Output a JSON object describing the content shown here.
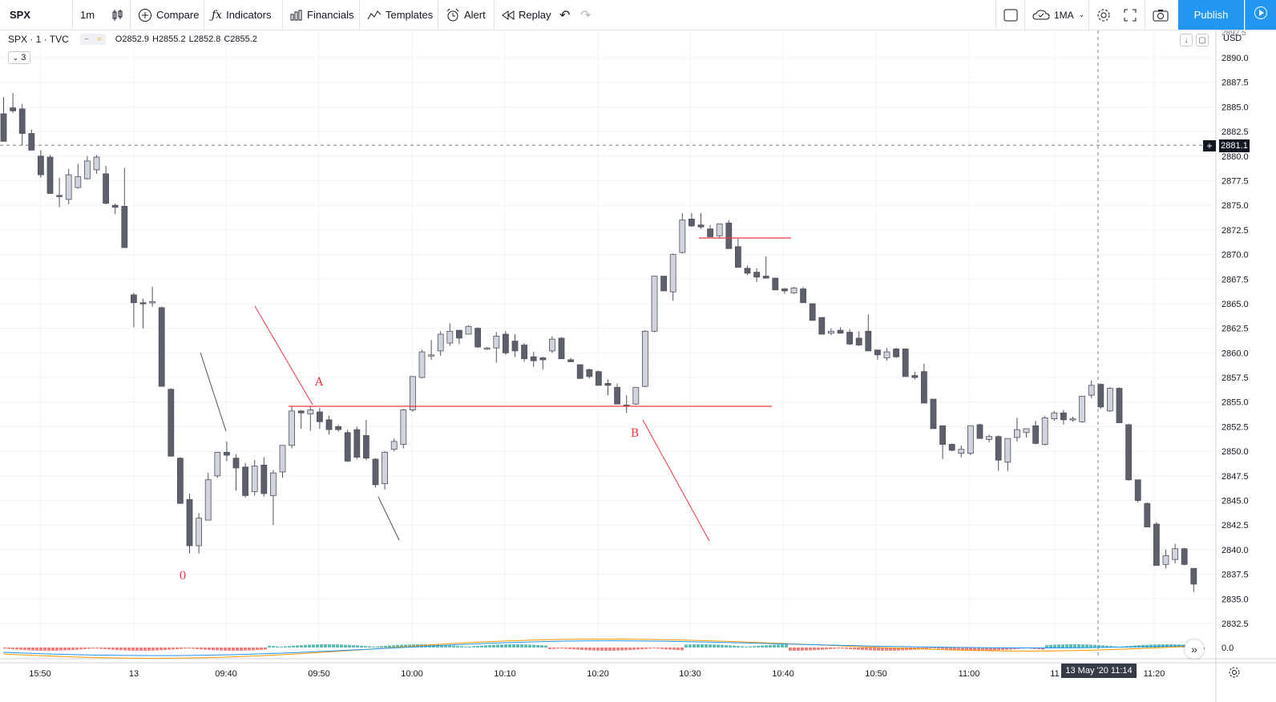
{
  "toolbar": {
    "symbol": "SPX",
    "interval": "1m",
    "compare": "Compare",
    "indicators": "Indicators",
    "financials": "Financials",
    "templates": "Templates",
    "alert": "Alert",
    "replay": "Replay",
    "ma_button": "1MA",
    "publish": "Publish"
  },
  "legend": {
    "symbol": "SPX · 1 · TVC",
    "open": "O2852.9",
    "high": "H2855.2",
    "low": "L2852.8",
    "close": "C2855.2",
    "collapse_count": "3"
  },
  "price_axis": {
    "currency": "USD",
    "crosshair_price": "2881.1"
  },
  "time_axis": {
    "crosshair_time": "13 May '20   11:14"
  },
  "annotations": {
    "label_a": "A",
    "label_b": "B",
    "label_0": "0"
  },
  "colors": {
    "up_candle": "#d1d4dc",
    "down_candle": "#5d606b",
    "drawing": "#f23645",
    "accent": "#2196f3"
  },
  "chart_data": {
    "type": "candlestick",
    "title": "SPX · 1 · TVC",
    "ylim": [
      2830.6,
      2893.4
    ],
    "y_ticks": [
      2890.0,
      2887.5,
      2885.0,
      2882.5,
      2880.0,
      2877.5,
      2875.0,
      2872.5,
      2870.0,
      2867.5,
      2865.0,
      2862.5,
      2860.0,
      2857.5,
      2855.0,
      2852.5,
      2850.0,
      2847.5,
      2845.0,
      2842.5,
      2840.0,
      2837.5,
      2835.0,
      2832.5
    ],
    "x_ticks": [
      "15:50",
      "13",
      "09:40",
      "09:50",
      "10:00",
      "10:10",
      "10:20",
      "10:30",
      "10:40",
      "10:50",
      "11:00",
      "11",
      "11:20"
    ],
    "indicator_label": "0.0",
    "candles": [
      {
        "o": 2884.3,
        "h": 2886.0,
        "l": 2881.5,
        "c": 2881.5
      },
      {
        "o": 2884.9,
        "h": 2886.4,
        "l": 2884.4,
        "c": 2884.6
      },
      {
        "o": 2884.8,
        "h": 2885.3,
        "l": 2881.1,
        "c": 2882.3
      },
      {
        "o": 2882.3,
        "h": 2882.7,
        "l": 2880.6,
        "c": 2880.6
      },
      {
        "o": 2880.0,
        "h": 2880.6,
        "l": 2877.8,
        "c": 2878.1
      },
      {
        "o": 2879.9,
        "h": 2880.1,
        "l": 2876.2,
        "c": 2876.2
      },
      {
        "o": 2876.0,
        "h": 2877.8,
        "l": 2874.8,
        "c": 2875.9
      },
      {
        "o": 2875.6,
        "h": 2878.7,
        "l": 2875.1,
        "c": 2878.1
      },
      {
        "o": 2876.8,
        "h": 2879.2,
        "l": 2876.7,
        "c": 2877.9
      },
      {
        "o": 2877.7,
        "h": 2880.0,
        "l": 2877.6,
        "c": 2879.5
      },
      {
        "o": 2878.6,
        "h": 2880.1,
        "l": 2878.2,
        "c": 2879.9
      },
      {
        "o": 2878.2,
        "h": 2879.0,
        "l": 2875.1,
        "c": 2875.2
      },
      {
        "o": 2875.0,
        "h": 2875.2,
        "l": 2874.1,
        "c": 2874.8
      },
      {
        "o": 2874.9,
        "h": 2878.8,
        "l": 2870.7,
        "c": 2870.7
      },
      {
        "o": 2865.9,
        "h": 2866.1,
        "l": 2862.6,
        "c": 2865.1
      },
      {
        "o": 2865.1,
        "h": 2865.5,
        "l": 2862.5,
        "c": 2865.0
      },
      {
        "o": 2865.1,
        "h": 2866.7,
        "l": 2864.7,
        "c": 2865.2
      },
      {
        "o": 2864.6,
        "h": 2864.7,
        "l": 2856.6,
        "c": 2856.6
      },
      {
        "o": 2856.3,
        "h": 2856.4,
        "l": 2849.5,
        "c": 2849.5
      },
      {
        "o": 2849.3,
        "h": 2849.4,
        "l": 2844.7,
        "c": 2844.7
      },
      {
        "o": 2845.1,
        "h": 2845.7,
        "l": 2839.6,
        "c": 2840.4
      },
      {
        "o": 2840.4,
        "h": 2843.7,
        "l": 2839.6,
        "c": 2843.2
      },
      {
        "o": 2843.0,
        "h": 2847.8,
        "l": 2843.0,
        "c": 2847.1
      },
      {
        "o": 2847.5,
        "h": 2849.9,
        "l": 2847.3,
        "c": 2849.9
      },
      {
        "o": 2849.9,
        "h": 2851.0,
        "l": 2849.0,
        "c": 2849.6
      },
      {
        "o": 2849.3,
        "h": 2849.7,
        "l": 2846.0,
        "c": 2848.3
      },
      {
        "o": 2848.4,
        "h": 2848.8,
        "l": 2845.3,
        "c": 2845.5
      },
      {
        "o": 2845.9,
        "h": 2849.1,
        "l": 2845.5,
        "c": 2848.5
      },
      {
        "o": 2848.6,
        "h": 2849.4,
        "l": 2845.4,
        "c": 2845.7
      },
      {
        "o": 2845.5,
        "h": 2848.1,
        "l": 2842.5,
        "c": 2847.8
      },
      {
        "o": 2847.9,
        "h": 2850.6,
        "l": 2847.3,
        "c": 2850.6
      },
      {
        "o": 2850.6,
        "h": 2854.6,
        "l": 2850.3,
        "c": 2854.1
      },
      {
        "o": 2854.1,
        "h": 2854.2,
        "l": 2852.3,
        "c": 2853.9
      },
      {
        "o": 2853.8,
        "h": 2854.6,
        "l": 2852.1,
        "c": 2854.2
      },
      {
        "o": 2854.0,
        "h": 2854.4,
        "l": 2852.3,
        "c": 2853.0
      },
      {
        "o": 2853.2,
        "h": 2853.6,
        "l": 2851.7,
        "c": 2852.2
      },
      {
        "o": 2852.5,
        "h": 2852.7,
        "l": 2852.0,
        "c": 2852.2
      },
      {
        "o": 2851.9,
        "h": 2852.2,
        "l": 2848.9,
        "c": 2849.0
      },
      {
        "o": 2852.2,
        "h": 2852.5,
        "l": 2849.2,
        "c": 2849.4
      },
      {
        "o": 2851.6,
        "h": 2853.2,
        "l": 2849.1,
        "c": 2849.3
      },
      {
        "o": 2849.2,
        "h": 2849.3,
        "l": 2846.3,
        "c": 2846.6
      },
      {
        "o": 2846.7,
        "h": 2850.0,
        "l": 2846.1,
        "c": 2849.9
      },
      {
        "o": 2850.2,
        "h": 2851.3,
        "l": 2850.0,
        "c": 2851.0
      },
      {
        "o": 2850.7,
        "h": 2854.3,
        "l": 2850.3,
        "c": 2854.2
      },
      {
        "o": 2854.2,
        "h": 2857.6,
        "l": 2854.0,
        "c": 2857.6
      },
      {
        "o": 2857.5,
        "h": 2860.3,
        "l": 2857.4,
        "c": 2860.1
      },
      {
        "o": 2859.7,
        "h": 2861.3,
        "l": 2859.3,
        "c": 2859.8
      },
      {
        "o": 2860.2,
        "h": 2862.2,
        "l": 2859.7,
        "c": 2861.9
      },
      {
        "o": 2861.0,
        "h": 2863.0,
        "l": 2860.7,
        "c": 2862.2
      },
      {
        "o": 2862.3,
        "h": 2862.3,
        "l": 2860.9,
        "c": 2861.5
      },
      {
        "o": 2861.9,
        "h": 2862.8,
        "l": 2862.3,
        "c": 2862.7
      },
      {
        "o": 2862.5,
        "h": 2862.6,
        "l": 2860.5,
        "c": 2860.6
      },
      {
        "o": 2860.4,
        "h": 2860.6,
        "l": 2860.3,
        "c": 2860.5
      },
      {
        "o": 2860.5,
        "h": 2862.1,
        "l": 2859.0,
        "c": 2861.7
      },
      {
        "o": 2861.9,
        "h": 2862.2,
        "l": 2859.8,
        "c": 2860.0
      },
      {
        "o": 2861.2,
        "h": 2861.9,
        "l": 2859.6,
        "c": 2860.2
      },
      {
        "o": 2860.8,
        "h": 2861.0,
        "l": 2859.1,
        "c": 2859.4
      },
      {
        "o": 2859.6,
        "h": 2860.1,
        "l": 2858.6,
        "c": 2859.2
      },
      {
        "o": 2859.5,
        "h": 2859.6,
        "l": 2858.3,
        "c": 2859.3
      },
      {
        "o": 2860.2,
        "h": 2861.7,
        "l": 2860.0,
        "c": 2861.4
      },
      {
        "o": 2861.5,
        "h": 2861.6,
        "l": 2859.4,
        "c": 2859.4
      },
      {
        "o": 2859.3,
        "h": 2859.5,
        "l": 2859.1,
        "c": 2859.1
      },
      {
        "o": 2858.8,
        "h": 2858.8,
        "l": 2857.4,
        "c": 2857.4
      },
      {
        "o": 2858.3,
        "h": 2858.4,
        "l": 2857.4,
        "c": 2857.6
      },
      {
        "o": 2858.1,
        "h": 2858.2,
        "l": 2856.7,
        "c": 2856.7
      },
      {
        "o": 2856.9,
        "h": 2857.3,
        "l": 2855.7,
        "c": 2856.7
      },
      {
        "o": 2856.5,
        "h": 2856.9,
        "l": 2854.8,
        "c": 2854.8
      },
      {
        "o": 2854.7,
        "h": 2855.7,
        "l": 2853.9,
        "c": 2854.6
      },
      {
        "o": 2854.8,
        "h": 2856.5,
        "l": 2854.7,
        "c": 2856.5
      },
      {
        "o": 2856.6,
        "h": 2862.3,
        "l": 2856.5,
        "c": 2862.2
      },
      {
        "o": 2862.2,
        "h": 2867.8,
        "l": 2862.1,
        "c": 2867.8
      },
      {
        "o": 2867.8,
        "h": 2867.8,
        "l": 2866.3,
        "c": 2866.3
      },
      {
        "o": 2866.2,
        "h": 2870.1,
        "l": 2865.3,
        "c": 2870.0
      },
      {
        "o": 2870.2,
        "h": 2874.2,
        "l": 2870.1,
        "c": 2873.5
      },
      {
        "o": 2873.6,
        "h": 2874.2,
        "l": 2872.8,
        "c": 2872.9
      },
      {
        "o": 2873.0,
        "h": 2874.2,
        "l": 2872.6,
        "c": 2872.8
      },
      {
        "o": 2872.6,
        "h": 2873.0,
        "l": 2871.8,
        "c": 2871.8
      },
      {
        "o": 2871.9,
        "h": 2873.1,
        "l": 2871.6,
        "c": 2873.1
      },
      {
        "o": 2873.2,
        "h": 2873.5,
        "l": 2870.6,
        "c": 2870.6
      },
      {
        "o": 2870.8,
        "h": 2871.6,
        "l": 2868.7,
        "c": 2868.7
      },
      {
        "o": 2868.6,
        "h": 2868.9,
        "l": 2867.9,
        "c": 2868.1
      },
      {
        "o": 2868.2,
        "h": 2868.6,
        "l": 2867.2,
        "c": 2867.7
      },
      {
        "o": 2867.8,
        "h": 2869.8,
        "l": 2867.6,
        "c": 2867.6
      },
      {
        "o": 2867.6,
        "h": 2867.6,
        "l": 2866.4,
        "c": 2866.4
      },
      {
        "o": 2866.5,
        "h": 2866.6,
        "l": 2866.0,
        "c": 2866.3
      },
      {
        "o": 2866.1,
        "h": 2866.7,
        "l": 2866.0,
        "c": 2866.6
      },
      {
        "o": 2866.5,
        "h": 2866.7,
        "l": 2865.1,
        "c": 2865.1
      },
      {
        "o": 2865.0,
        "h": 2865.0,
        "l": 2863.3,
        "c": 2863.3
      },
      {
        "o": 2863.6,
        "h": 2863.6,
        "l": 2861.9,
        "c": 2861.9
      },
      {
        "o": 2862.0,
        "h": 2862.5,
        "l": 2861.8,
        "c": 2862.2
      },
      {
        "o": 2862.3,
        "h": 2862.6,
        "l": 2862.0,
        "c": 2862.0
      },
      {
        "o": 2862.1,
        "h": 2862.4,
        "l": 2860.8,
        "c": 2860.9
      },
      {
        "o": 2861.5,
        "h": 2862.2,
        "l": 2860.7,
        "c": 2860.8
      },
      {
        "o": 2862.2,
        "h": 2863.9,
        "l": 2860.2,
        "c": 2860.2
      },
      {
        "o": 2860.3,
        "h": 2860.3,
        "l": 2859.3,
        "c": 2859.8
      },
      {
        "o": 2859.5,
        "h": 2860.5,
        "l": 2859.2,
        "c": 2860.1
      },
      {
        "o": 2860.4,
        "h": 2860.5,
        "l": 2859.5,
        "c": 2859.6
      },
      {
        "o": 2860.4,
        "h": 2860.4,
        "l": 2857.6,
        "c": 2857.6
      },
      {
        "o": 2857.7,
        "h": 2858.1,
        "l": 2857.3,
        "c": 2857.5
      },
      {
        "o": 2858.1,
        "h": 2858.9,
        "l": 2854.9,
        "c": 2854.9
      },
      {
        "o": 2855.3,
        "h": 2855.3,
        "l": 2852.3,
        "c": 2852.3
      },
      {
        "o": 2852.6,
        "h": 2852.6,
        "l": 2849.2,
        "c": 2850.7
      },
      {
        "o": 2850.7,
        "h": 2850.8,
        "l": 2850.0,
        "c": 2850.1
      },
      {
        "o": 2849.8,
        "h": 2850.6,
        "l": 2849.4,
        "c": 2850.2
      },
      {
        "o": 2849.8,
        "h": 2852.6,
        "l": 2849.6,
        "c": 2852.6
      },
      {
        "o": 2852.7,
        "h": 2852.8,
        "l": 2851.3,
        "c": 2851.3
      },
      {
        "o": 2851.2,
        "h": 2851.7,
        "l": 2850.9,
        "c": 2851.5
      },
      {
        "o": 2851.5,
        "h": 2851.6,
        "l": 2848.0,
        "c": 2849.1
      },
      {
        "o": 2848.9,
        "h": 2851.3,
        "l": 2848.0,
        "c": 2851.3
      },
      {
        "o": 2851.4,
        "h": 2853.4,
        "l": 2851.0,
        "c": 2852.2
      },
      {
        "o": 2851.9,
        "h": 2852.3,
        "l": 2851.4,
        "c": 2852.3
      },
      {
        "o": 2852.6,
        "h": 2853.1,
        "l": 2850.7,
        "c": 2850.8
      },
      {
        "o": 2850.7,
        "h": 2853.6,
        "l": 2850.6,
        "c": 2853.4
      },
      {
        "o": 2853.3,
        "h": 2854.1,
        "l": 2853.1,
        "c": 2853.9
      },
      {
        "o": 2853.9,
        "h": 2854.2,
        "l": 2852.7,
        "c": 2853.2
      },
      {
        "o": 2853.2,
        "h": 2853.5,
        "l": 2853.0,
        "c": 2853.3
      },
      {
        "o": 2853.0,
        "h": 2855.6,
        "l": 2852.9,
        "c": 2855.6
      },
      {
        "o": 2855.7,
        "h": 2857.2,
        "l": 2855.4,
        "c": 2856.7
      },
      {
        "o": 2856.8,
        "h": 2856.9,
        "l": 2854.3,
        "c": 2854.5
      },
      {
        "o": 2854.1,
        "h": 2856.5,
        "l": 2854.0,
        "c": 2856.4
      },
      {
        "o": 2856.4,
        "h": 2856.5,
        "l": 2852.9,
        "c": 2852.9
      },
      {
        "o": 2852.7,
        "h": 2852.8,
        "l": 2847.0,
        "c": 2847.1
      },
      {
        "o": 2847.1,
        "h": 2847.1,
        "l": 2844.8,
        "c": 2845.0
      },
      {
        "o": 2844.7,
        "h": 2844.8,
        "l": 2842.3,
        "c": 2842.3
      },
      {
        "o": 2842.6,
        "h": 2842.8,
        "l": 2838.4,
        "c": 2838.4
      },
      {
        "o": 2838.5,
        "h": 2840.0,
        "l": 2838.1,
        "c": 2839.4
      },
      {
        "o": 2839.0,
        "h": 2840.6,
        "l": 2838.6,
        "c": 2840.1
      },
      {
        "o": 2840.1,
        "h": 2840.2,
        "l": 2838.4,
        "c": 2838.5
      },
      {
        "o": 2838.1,
        "h": 2838.1,
        "l": 2835.7,
        "c": 2836.5
      }
    ]
  }
}
